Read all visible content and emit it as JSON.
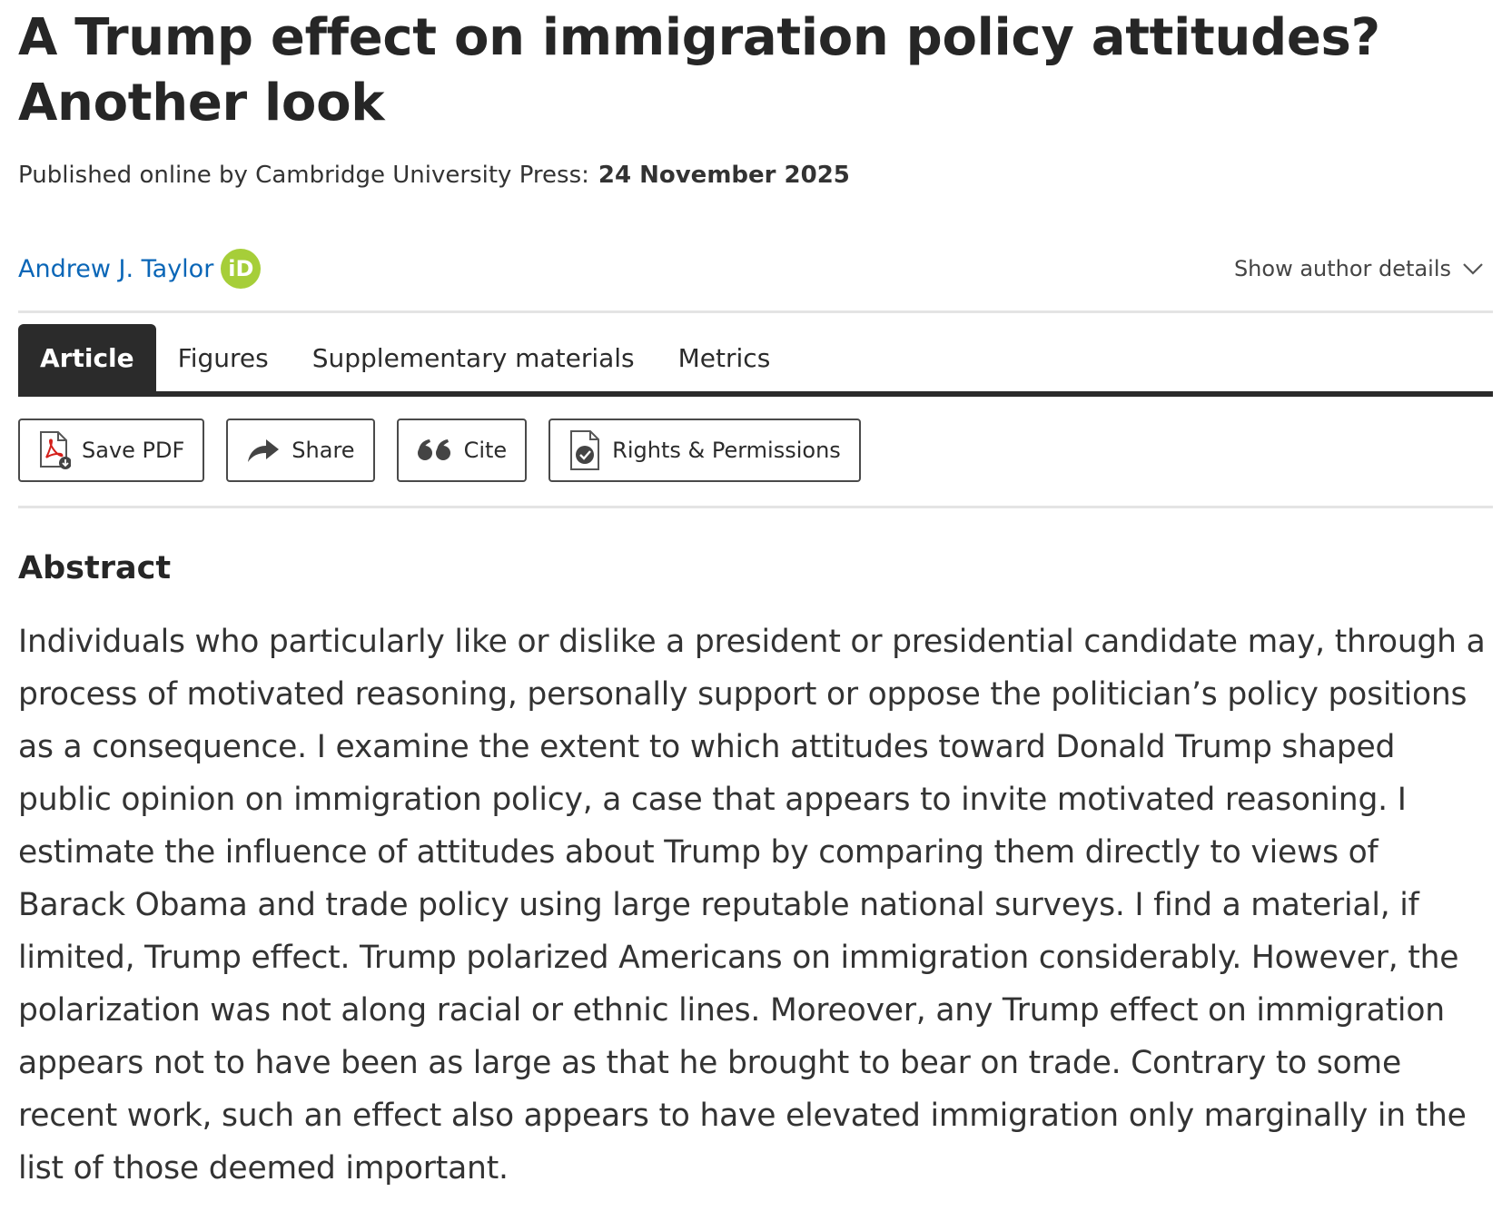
{
  "article": {
    "title": "A Trump effect on immigration policy attitudes? Another look",
    "published_label": "Published online by Cambridge University Press:",
    "published_date": "24 November 2025"
  },
  "author": {
    "name": "Andrew J. Taylor",
    "orcid_badge": "iD",
    "details_label": "Show author details"
  },
  "tabs": [
    {
      "label": "Article",
      "active": true
    },
    {
      "label": "Figures",
      "active": false
    },
    {
      "label": "Supplementary materials",
      "active": false
    },
    {
      "label": "Metrics",
      "active": false
    }
  ],
  "toolbar": {
    "save_pdf": "Save PDF",
    "share": "Share",
    "cite": "Cite",
    "rights": "Rights & Permissions"
  },
  "abstract": {
    "heading": "Abstract",
    "text": "Individuals who particularly like or dislike a president or presidential candidate may, through a process of motivated reasoning, personally support or oppose the politician’s policy positions as a consequence. I examine the extent to which attitudes toward Donald Trump shaped public opinion on immigration policy, a case that appears to invite motivated reasoning. I estimate the influence of attitudes about Trump by comparing them directly to views of Barack Obama and trade policy using large reputable national surveys. I find a material, if limited, Trump effect. Trump polarized Americans on immigration considerably. However, the polarization was not along racial or ethnic lines. Moreover, any Trump effect on immigration appears not to have been as large as that he brought to bear on trade. Contrary to some recent work, such an effect also appears to have elevated immigration only marginally in the list of those deemed important."
  },
  "colors": {
    "link": "#0a66b7",
    "orcid": "#a6ce39",
    "tab_active_bg": "#2b2b2b",
    "pdf_red": "#d4201b"
  },
  "icons": {
    "pdf": "pdf-download-icon",
    "share": "share-arrow-icon",
    "cite": "quote-icon",
    "rights": "document-check-icon",
    "chevron": "chevron-down-icon"
  }
}
